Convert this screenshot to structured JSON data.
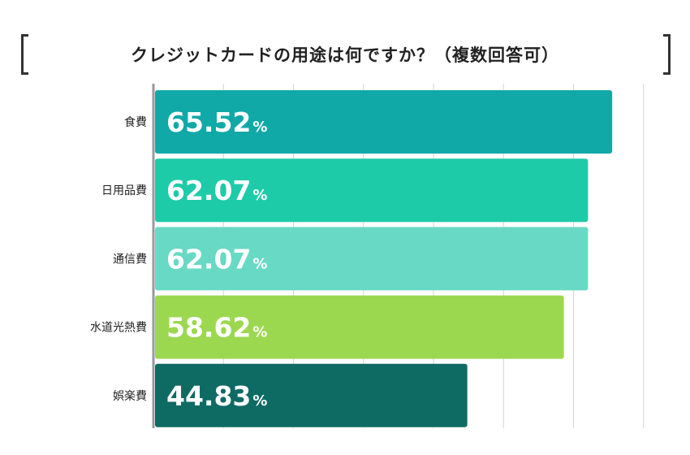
{
  "title": "クレジットカードの用途は何ですか？（複数回答可）",
  "unit": "%",
  "chart_data": {
    "type": "bar",
    "orientation": "horizontal",
    "title": "クレジットカードの用途は何ですか？（複数回答可）",
    "categories": [
      "食費",
      "日用品費",
      "通信費",
      "水道光熱費",
      "娯楽費"
    ],
    "values": [
      65.52,
      62.07,
      62.07,
      58.62,
      44.83
    ],
    "value_labels": [
      "65.52",
      "62.07",
      "62.07",
      "58.62",
      "44.83"
    ],
    "unit": "%",
    "colors": [
      "#10a9a8",
      "#1ecba8",
      "#68d9c4",
      "#9bd84f",
      "#0e6b64"
    ],
    "xlabel": "",
    "ylabel": "",
    "xlim": [
      0,
      70
    ],
    "grid": true,
    "legend": "none"
  }
}
